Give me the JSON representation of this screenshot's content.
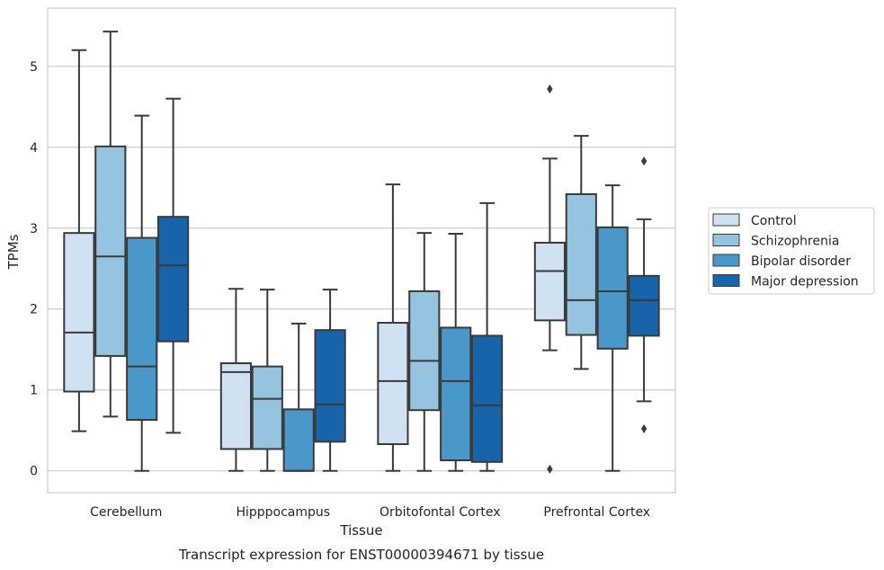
{
  "caption": "Transcript expression for ENST00000394671 by tissue",
  "chart_data": {
    "type": "boxplot",
    "xlabel": "Tissue",
    "ylabel": "TPMs",
    "ylim": [
      -0.27,
      5.72
    ],
    "yticks": [
      0,
      1,
      2,
      3,
      4,
      5
    ],
    "grid": "horizontal",
    "legend_position": "right-outside",
    "categories": [
      "Cerebellum",
      "Hipppocampus",
      "Orbitofontal Cortex",
      "Prefrontal Cortex"
    ],
    "series": [
      {
        "name": "Control",
        "color": "#d0e1f2",
        "boxes": [
          {
            "min": 0.49,
            "q1": 0.98,
            "median": 1.71,
            "q3": 2.94,
            "max": 5.2,
            "outliers": []
          },
          {
            "min": 0.0,
            "q1": 0.27,
            "median": 1.22,
            "q3": 1.33,
            "max": 2.25,
            "outliers": []
          },
          {
            "min": 0.0,
            "q1": 0.33,
            "median": 1.11,
            "q3": 1.83,
            "max": 3.54,
            "outliers": []
          },
          {
            "min": 1.49,
            "q1": 1.86,
            "median": 2.47,
            "q3": 2.82,
            "max": 3.86,
            "outliers": [
              4.72,
              0.02
            ]
          }
        ]
      },
      {
        "name": "Schizophrenia",
        "color": "#94c4df",
        "boxes": [
          {
            "min": 0.67,
            "q1": 1.42,
            "median": 2.65,
            "q3": 4.01,
            "max": 5.43,
            "outliers": []
          },
          {
            "min": 0.0,
            "q1": 0.27,
            "median": 0.89,
            "q3": 1.29,
            "max": 2.24,
            "outliers": []
          },
          {
            "min": 0.0,
            "q1": 0.75,
            "median": 1.36,
            "q3": 2.22,
            "max": 2.94,
            "outliers": []
          },
          {
            "min": 1.26,
            "q1": 1.68,
            "median": 2.11,
            "q3": 3.42,
            "max": 4.14,
            "outliers": []
          }
        ]
      },
      {
        "name": "Bipolar disorder",
        "color": "#4a98c9",
        "boxes": [
          {
            "min": 0.0,
            "q1": 0.63,
            "median": 1.29,
            "q3": 2.88,
            "max": 4.39,
            "outliers": []
          },
          {
            "min": 0.0,
            "q1": 0.0,
            "median": 0.0,
            "q3": 0.76,
            "max": 1.82,
            "outliers": []
          },
          {
            "min": 0.0,
            "q1": 0.13,
            "median": 1.11,
            "q3": 1.77,
            "max": 2.93,
            "outliers": []
          },
          {
            "min": 0.0,
            "q1": 1.51,
            "median": 2.22,
            "q3": 3.01,
            "max": 3.53,
            "outliers": []
          }
        ]
      },
      {
        "name": "Major depression",
        "color": "#1764ab",
        "boxes": [
          {
            "min": 0.47,
            "q1": 1.6,
            "median": 2.54,
            "q3": 3.14,
            "max": 4.6,
            "outliers": []
          },
          {
            "min": 0.0,
            "q1": 0.36,
            "median": 0.82,
            "q3": 1.74,
            "max": 2.24,
            "outliers": []
          },
          {
            "min": 0.0,
            "q1": 0.11,
            "median": 0.81,
            "q3": 1.67,
            "max": 3.31,
            "outliers": []
          },
          {
            "min": 0.86,
            "q1": 1.67,
            "median": 2.11,
            "q3": 2.41,
            "max": 3.11,
            "outliers": [
              3.83,
              0.52
            ]
          }
        ]
      }
    ]
  }
}
